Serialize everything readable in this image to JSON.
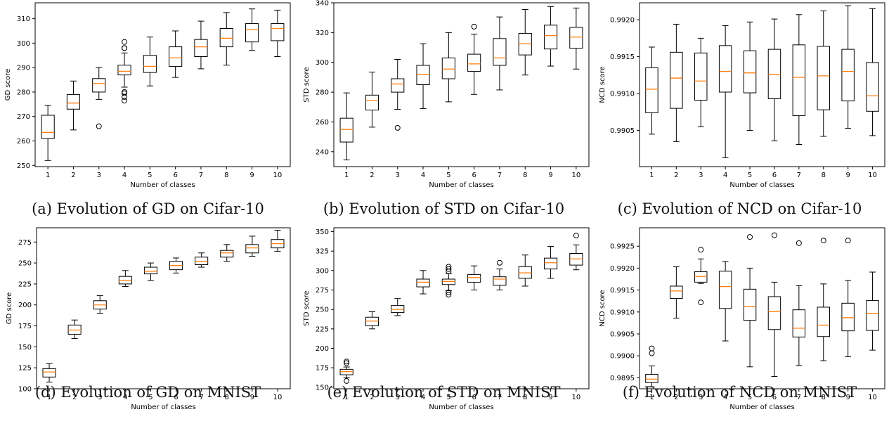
{
  "colors": {
    "median": "#ff7f0e",
    "box": "#000000"
  },
  "chart_data": [
    {
      "type": "box",
      "caption": "(a) Evolution of GD on Cifar-10",
      "xlabel": "Number of classes",
      "ylabel": "GD score",
      "categories": [
        "1",
        "2",
        "3",
        "4",
        "5",
        "6",
        "7",
        "8",
        "9",
        "10"
      ],
      "ylim": [
        249.5,
        316.5
      ],
      "yticks": [
        250,
        260,
        270,
        280,
        290,
        300,
        310
      ],
      "ytick_labels": [
        "250",
        "260",
        "270",
        "280",
        "290",
        "300",
        "310"
      ],
      "boxes": [
        {
          "whislo": 252,
          "q1": 261,
          "med": 263.5,
          "q3": 270.5,
          "whishi": 274.5,
          "fliers": []
        },
        {
          "whislo": 264.5,
          "q1": 273,
          "med": 275.5,
          "q3": 279,
          "whishi": 284.5,
          "fliers": []
        },
        {
          "whislo": 277,
          "q1": 280,
          "med": 283.5,
          "q3": 285.5,
          "whishi": 290,
          "fliers": [
            266
          ]
        },
        {
          "whislo": 282,
          "q1": 287,
          "med": 288.5,
          "q3": 291,
          "whishi": 296,
          "fliers": [
            276.5,
            278,
            279.5,
            280,
            298,
            298,
            300.5
          ]
        },
        {
          "whislo": 282.5,
          "q1": 288,
          "med": 290.5,
          "q3": 295,
          "whishi": 302.5,
          "fliers": []
        },
        {
          "whislo": 286,
          "q1": 290.5,
          "med": 294,
          "q3": 298.5,
          "whishi": 305,
          "fliers": []
        },
        {
          "whislo": 289.5,
          "q1": 294.5,
          "med": 298.5,
          "q3": 301.5,
          "whishi": 309,
          "fliers": []
        },
        {
          "whislo": 291,
          "q1": 298.5,
          "med": 302,
          "q3": 306,
          "whishi": 312.5,
          "fliers": []
        },
        {
          "whislo": 297,
          "q1": 300.5,
          "med": 305.5,
          "q3": 308,
          "whishi": 314,
          "fliers": []
        },
        {
          "whislo": 294.5,
          "q1": 301,
          "med": 306,
          "q3": 308,
          "whishi": 313.5,
          "fliers": []
        }
      ]
    },
    {
      "type": "box",
      "caption": "(b) Evolution of STD on Cifar-10",
      "xlabel": "Number of classes",
      "ylabel": "STD score",
      "categories": [
        "1",
        "2",
        "3",
        "4",
        "5",
        "6",
        "7",
        "8",
        "9",
        "10"
      ],
      "ylim": [
        230,
        340
      ],
      "yticks": [
        240,
        260,
        280,
        300,
        320,
        340
      ],
      "ytick_labels": [
        "240",
        "260",
        "280",
        "300",
        "320",
        "340"
      ],
      "boxes": [
        {
          "whislo": 234.5,
          "q1": 246.5,
          "med": 255,
          "q3": 262.5,
          "whishi": 279.5,
          "fliers": []
        },
        {
          "whislo": 256.5,
          "q1": 268,
          "med": 274.5,
          "q3": 278,
          "whishi": 293.5,
          "fliers": []
        },
        {
          "whislo": 268.5,
          "q1": 280,
          "med": 285.5,
          "q3": 289,
          "whishi": 302,
          "fliers": [
            256
          ]
        },
        {
          "whislo": 269,
          "q1": 285,
          "med": 292,
          "q3": 298,
          "whishi": 312.5,
          "fliers": []
        },
        {
          "whislo": 273.5,
          "q1": 289,
          "med": 295.5,
          "q3": 303,
          "whishi": 320,
          "fliers": []
        },
        {
          "whislo": 278.5,
          "q1": 294,
          "med": 299,
          "q3": 305.5,
          "whishi": 319,
          "fliers": [
            324
          ]
        },
        {
          "whislo": 281.5,
          "q1": 298,
          "med": 303,
          "q3": 316,
          "whishi": 330.5,
          "fliers": []
        },
        {
          "whislo": 291.5,
          "q1": 305,
          "med": 312.5,
          "q3": 319.5,
          "whishi": 335.5,
          "fliers": []
        },
        {
          "whislo": 297.5,
          "q1": 309,
          "med": 318,
          "q3": 325,
          "whishi": 337.5,
          "fliers": []
        },
        {
          "whislo": 295.5,
          "q1": 309.5,
          "med": 317,
          "q3": 323.5,
          "whishi": 336.5,
          "fliers": []
        }
      ]
    },
    {
      "type": "box",
      "caption": "(c) Evolution of NCD on Cifar-10",
      "xlabel": "Number of classes",
      "ylabel": "NCD score",
      "categories": [
        "1",
        "2",
        "3",
        "4",
        "5",
        "6",
        "7",
        "8",
        "9",
        "10"
      ],
      "ylim": [
        0.99001,
        0.99223
      ],
      "yticks": [
        0.9905,
        0.991,
        0.9915,
        0.992
      ],
      "ytick_labels": [
        "0.9905",
        "0.9910",
        "0.9915",
        "0.9920"
      ],
      "boxes": [
        {
          "whislo": 0.99045,
          "q1": 0.99074,
          "med": 0.99106,
          "q3": 0.99135,
          "whishi": 0.99163,
          "fliers": []
        },
        {
          "whislo": 0.99035,
          "q1": 0.9908,
          "med": 0.99121,
          "q3": 0.99156,
          "whishi": 0.99194,
          "fliers": []
        },
        {
          "whislo": 0.99055,
          "q1": 0.99091,
          "med": 0.99117,
          "q3": 0.99155,
          "whishi": 0.99175,
          "fliers": []
        },
        {
          "whislo": 0.99013,
          "q1": 0.99102,
          "med": 0.9913,
          "q3": 0.99165,
          "whishi": 0.99192,
          "fliers": []
        },
        {
          "whislo": 0.9905,
          "q1": 0.99101,
          "med": 0.99128,
          "q3": 0.99158,
          "whishi": 0.99197,
          "fliers": []
        },
        {
          "whislo": 0.99036,
          "q1": 0.99093,
          "med": 0.99126,
          "q3": 0.9916,
          "whishi": 0.99201,
          "fliers": []
        },
        {
          "whislo": 0.99031,
          "q1": 0.9907,
          "med": 0.99122,
          "q3": 0.99166,
          "whishi": 0.99207,
          "fliers": []
        },
        {
          "whislo": 0.99042,
          "q1": 0.99078,
          "med": 0.99124,
          "q3": 0.99164,
          "whishi": 0.99212,
          "fliers": []
        },
        {
          "whislo": 0.99053,
          "q1": 0.9909,
          "med": 0.9913,
          "q3": 0.9916,
          "whishi": 0.99219,
          "fliers": []
        },
        {
          "whislo": 0.99043,
          "q1": 0.99076,
          "med": 0.99097,
          "q3": 0.99142,
          "whishi": 0.99215,
          "fliers": []
        }
      ]
    },
    {
      "type": "box",
      "caption": "(d) Evolution of GD on MNIST",
      "xlabel": "Number of classes",
      "ylabel": "GD score",
      "categories": [
        "1",
        "2",
        "3",
        "4",
        "5",
        "6",
        "7",
        "8",
        "9",
        "10"
      ],
      "ylim": [
        100,
        292
      ],
      "yticks": [
        100,
        125,
        150,
        175,
        200,
        225,
        250,
        275
      ],
      "ytick_labels": [
        "100",
        "125",
        "150",
        "175",
        "200",
        "225",
        "250",
        "275"
      ],
      "boxes": [
        {
          "whislo": 108,
          "q1": 114,
          "med": 120,
          "q3": 124,
          "whishi": 130,
          "fliers": []
        },
        {
          "whislo": 160,
          "q1": 165,
          "med": 170,
          "q3": 176,
          "whishi": 182,
          "fliers": []
        },
        {
          "whislo": 190,
          "q1": 195,
          "med": 200,
          "q3": 205,
          "whishi": 211,
          "fliers": []
        },
        {
          "whislo": 222,
          "q1": 225,
          "med": 229,
          "q3": 234,
          "whishi": 241,
          "fliers": []
        },
        {
          "whislo": 229,
          "q1": 237,
          "med": 240,
          "q3": 245,
          "whishi": 250,
          "fliers": []
        },
        {
          "whislo": 238,
          "q1": 242,
          "med": 247,
          "q3": 252,
          "whishi": 256,
          "fliers": []
        },
        {
          "whislo": 245,
          "q1": 248,
          "med": 252,
          "q3": 257,
          "whishi": 262,
          "fliers": []
        },
        {
          "whislo": 252,
          "q1": 257,
          "med": 262,
          "q3": 265,
          "whishi": 272,
          "fliers": []
        },
        {
          "whislo": 258,
          "q1": 262,
          "med": 268,
          "q3": 272,
          "whishi": 282,
          "fliers": []
        },
        {
          "whislo": 264,
          "q1": 268,
          "med": 273,
          "q3": 278,
          "whishi": 289,
          "fliers": []
        }
      ]
    },
    {
      "type": "box",
      "caption": "(e) Evolution of STD on MNIST",
      "xlabel": "Number of classes",
      "ylabel": "STD score",
      "categories": [
        "1",
        "2",
        "3",
        "4",
        "5",
        "6",
        "7",
        "8",
        "9",
        "10"
      ],
      "ylim": [
        148,
        355
      ],
      "yticks": [
        150,
        175,
        200,
        225,
        250,
        275,
        300,
        325,
        350
      ],
      "ytick_labels": [
        "150",
        "175",
        "200",
        "225",
        "250",
        "275",
        "300",
        "325",
        "350"
      ],
      "boxes": [
        {
          "whislo": 162,
          "q1": 166,
          "med": 170,
          "q3": 173,
          "whishi": 176,
          "fliers": [
            158,
            181,
            183
          ]
        },
        {
          "whislo": 225,
          "q1": 229,
          "med": 235,
          "q3": 240,
          "whishi": 247,
          "fliers": []
        },
        {
          "whislo": 242,
          "q1": 246,
          "med": 250,
          "q3": 255,
          "whishi": 264,
          "fliers": []
        },
        {
          "whislo": 270,
          "q1": 279,
          "med": 285,
          "q3": 289,
          "whishi": 300,
          "fliers": []
        },
        {
          "whislo": 274,
          "q1": 282,
          "med": 286,
          "q3": 289,
          "whishi": 296,
          "fliers": [
            269,
            272,
            299,
            302,
            305
          ]
        },
        {
          "whislo": 275,
          "q1": 285,
          "med": 291,
          "q3": 295,
          "whishi": 306,
          "fliers": []
        },
        {
          "whislo": 275,
          "q1": 281,
          "med": 289,
          "q3": 292,
          "whishi": 302,
          "fliers": [
            310
          ]
        },
        {
          "whislo": 280,
          "q1": 290,
          "med": 297,
          "q3": 305,
          "whishi": 320,
          "fliers": []
        },
        {
          "whislo": 290,
          "q1": 302,
          "med": 310,
          "q3": 316,
          "whishi": 331,
          "fliers": []
        },
        {
          "whislo": 301,
          "q1": 307,
          "med": 315,
          "q3": 322,
          "whishi": 333,
          "fliers": [
            345
          ]
        }
      ]
    },
    {
      "type": "box",
      "caption": "(f) Evolution of NCD on MNIST",
      "xlabel": "Number of classes",
      "ylabel": "NCD score",
      "categories": [
        "1",
        "2",
        "3",
        "4",
        "5",
        "6",
        "7",
        "8",
        "9",
        "10"
      ],
      "ylim": [
        0.98925,
        0.99292
      ],
      "yticks": [
        0.9895,
        0.99,
        0.9905,
        0.991,
        0.9915,
        0.992,
        0.9925
      ],
      "ytick_labels": [
        "0.9895",
        "0.9900",
        "0.9905",
        "0.9910",
        "0.9915",
        "0.9920",
        "0.9925"
      ],
      "boxes": [
        {
          "whislo": 0.98929,
          "q1": 0.98939,
          "med": 0.98947,
          "q3": 0.98958,
          "whishi": 0.98977,
          "fliers": [
            0.99006,
            0.99017
          ]
        },
        {
          "whislo": 0.99086,
          "q1": 0.99131,
          "med": 0.99148,
          "q3": 0.99159,
          "whishi": 0.99203,
          "fliers": []
        },
        {
          "whislo": 0.99165,
          "q1": 0.99168,
          "med": 0.99181,
          "q3": 0.99192,
          "whishi": 0.99221,
          "fliers": [
            0.99122,
            0.99242
          ]
        },
        {
          "whislo": 0.99034,
          "q1": 0.99108,
          "med": 0.99158,
          "q3": 0.99193,
          "whishi": 0.99215,
          "fliers": []
        },
        {
          "whislo": 0.98975,
          "q1": 0.99081,
          "med": 0.99112,
          "q3": 0.99152,
          "whishi": 0.992,
          "fliers": [
            0.99271
          ]
        },
        {
          "whislo": 0.98953,
          "q1": 0.9906,
          "med": 0.99101,
          "q3": 0.99135,
          "whishi": 0.99168,
          "fliers": [
            0.99275
          ]
        },
        {
          "whislo": 0.98978,
          "q1": 0.99043,
          "med": 0.99063,
          "q3": 0.99105,
          "whishi": 0.9916,
          "fliers": [
            0.99257
          ]
        },
        {
          "whislo": 0.98989,
          "q1": 0.99044,
          "med": 0.9907,
          "q3": 0.99111,
          "whishi": 0.99164,
          "fliers": [
            0.99263
          ]
        },
        {
          "whislo": 0.98998,
          "q1": 0.99057,
          "med": 0.99087,
          "q3": 0.9912,
          "whishi": 0.99172,
          "fliers": [
            0.99263
          ]
        },
        {
          "whislo": 0.99013,
          "q1": 0.99058,
          "med": 0.99097,
          "q3": 0.99126,
          "whishi": 0.99191,
          "fliers": []
        }
      ]
    }
  ]
}
